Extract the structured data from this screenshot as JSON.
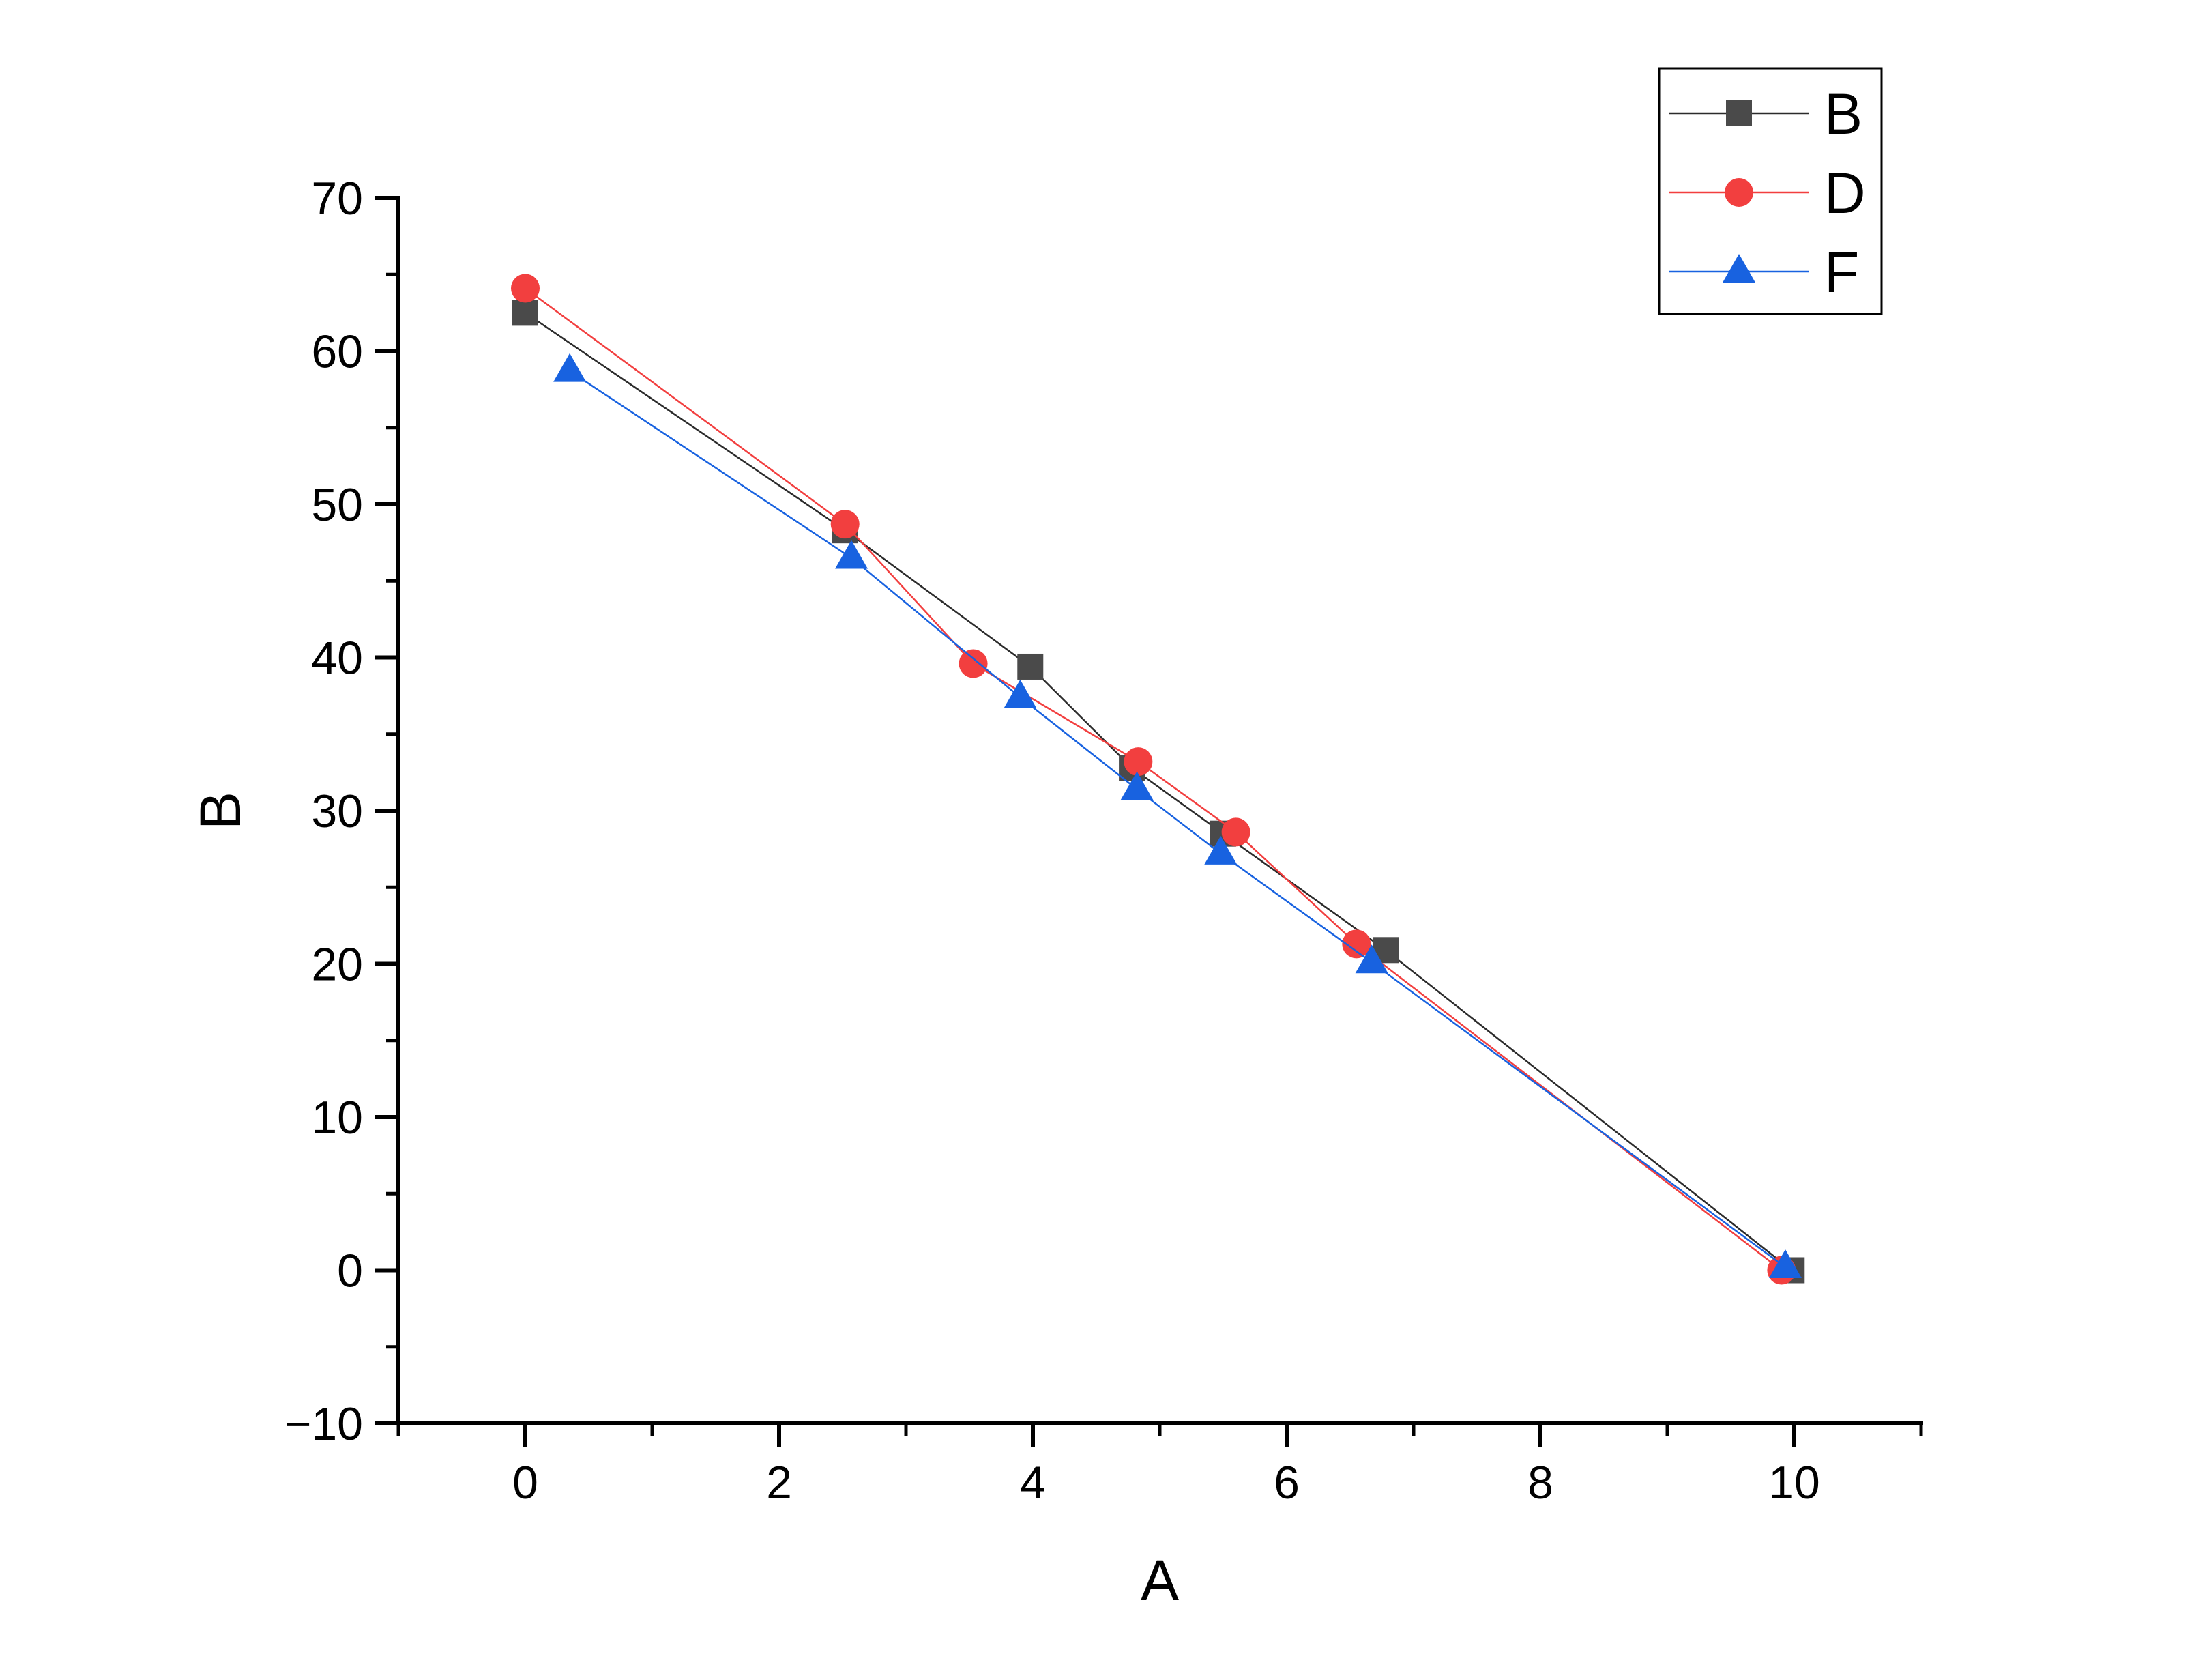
{
  "chart_data": {
    "type": "line",
    "xlabel": "A",
    "ylabel": "B",
    "xlim": [
      -1,
      11
    ],
    "ylim": [
      -10,
      70
    ],
    "x_ticks": [
      0,
      2,
      4,
      6,
      8,
      10
    ],
    "y_ticks": [
      -10,
      0,
      10,
      20,
      30,
      40,
      50,
      60,
      70
    ],
    "x_tick_labels": [
      "0",
      "2",
      "4",
      "6",
      "8",
      "10"
    ],
    "y_tick_labels": [
      "−10",
      "0",
      "10",
      "20",
      "30",
      "40",
      "50",
      "60",
      "70"
    ],
    "grid": false,
    "legend_position": "top-right",
    "series": [
      {
        "name": "B",
        "marker": "square",
        "color": "#4a4a4a",
        "line_color": "#2b2b2b",
        "points": [
          [
            0,
            62.5
          ],
          [
            2.52,
            48.3
          ],
          [
            3.98,
            39.4
          ],
          [
            4.78,
            32.8
          ],
          [
            5.5,
            28.5
          ],
          [
            6.78,
            20.9
          ],
          [
            9.98,
            0
          ]
        ]
      },
      {
        "name": "D",
        "marker": "circle",
        "color": "#f23f3f",
        "line_color": "#f23f3f",
        "points": [
          [
            0,
            64.1
          ],
          [
            2.52,
            48.7
          ],
          [
            3.53,
            39.6
          ],
          [
            4.83,
            33.2
          ],
          [
            5.6,
            28.6
          ],
          [
            6.55,
            21.3
          ],
          [
            9.9,
            0
          ]
        ]
      },
      {
        "name": "F",
        "marker": "triangle",
        "color": "#1862e0",
        "line_color": "#1862e0",
        "points": [
          [
            0.35,
            58.7
          ],
          [
            2.57,
            46.5
          ],
          [
            3.9,
            37.4
          ],
          [
            4.82,
            31.4
          ],
          [
            5.48,
            27.2
          ],
          [
            6.67,
            20.1
          ],
          [
            9.93,
            0.2
          ]
        ]
      }
    ]
  }
}
